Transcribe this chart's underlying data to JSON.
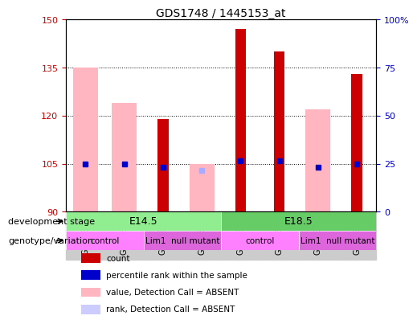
{
  "title": "GDS1748 / 1445153_at",
  "samples": [
    "GSM96563",
    "GSM96564",
    "GSM96565",
    "GSM96566",
    "GSM96567",
    "GSM96568",
    "GSM96569",
    "GSM96570"
  ],
  "ylim_left": [
    90,
    150
  ],
  "ylim_right": [
    0,
    100
  ],
  "yticks_left": [
    90,
    105,
    120,
    135,
    150
  ],
  "yticks_right": [
    0,
    25,
    50,
    75,
    100
  ],
  "ytick_labels_right": [
    "0",
    "25",
    "50",
    "75",
    "100%"
  ],
  "red_bars": [
    null,
    null,
    119,
    null,
    147,
    140,
    null,
    133
  ],
  "red_bar_base": 90,
  "pink_bars": [
    135,
    124,
    null,
    105,
    null,
    null,
    122,
    null
  ],
  "pink_bar_base": 90,
  "blue_squares_y": [
    105,
    105,
    104,
    null,
    106,
    106,
    104,
    105
  ],
  "blue_squares_right_axis": [
    25,
    25,
    24,
    null,
    26,
    26,
    24,
    25
  ],
  "light_blue_y": [
    null,
    null,
    null,
    103,
    null,
    null,
    null,
    null
  ],
  "light_blue_right_axis": [
    null,
    null,
    null,
    22,
    null,
    null,
    null,
    null
  ],
  "dev_stage_row": [
    {
      "label": "E14.5",
      "start": 0,
      "end": 4,
      "color": "#90EE90"
    },
    {
      "label": "E18.5",
      "start": 4,
      "end": 8,
      "color": "#66CC66"
    }
  ],
  "genotype_row": [
    {
      "label": "control",
      "start": 0,
      "end": 2,
      "color": "#FF80FF"
    },
    {
      "label": "Lim1  null mutant",
      "start": 2,
      "end": 4,
      "color": "#DD66DD"
    },
    {
      "label": "control",
      "start": 4,
      "end": 6,
      "color": "#FF80FF"
    },
    {
      "label": "Lim1  null mutant",
      "start": 6,
      "end": 8,
      "color": "#DD66DD"
    }
  ],
  "legend_items": [
    {
      "color": "#CC0000",
      "label": "count"
    },
    {
      "color": "#0000CC",
      "label": "percentile rank within the sample"
    },
    {
      "color": "#FFB6C1",
      "label": "value, Detection Call = ABSENT"
    },
    {
      "color": "#CCCCFF",
      "label": "rank, Detection Call = ABSENT"
    }
  ],
  "bar_width": 0.4,
  "plot_bg": "#FFFFFF",
  "grid_color": "#000000",
  "axis_color_left": "#CC0000",
  "axis_color_right": "#0000CC",
  "tick_label_area_bg": "#CCCCCC"
}
